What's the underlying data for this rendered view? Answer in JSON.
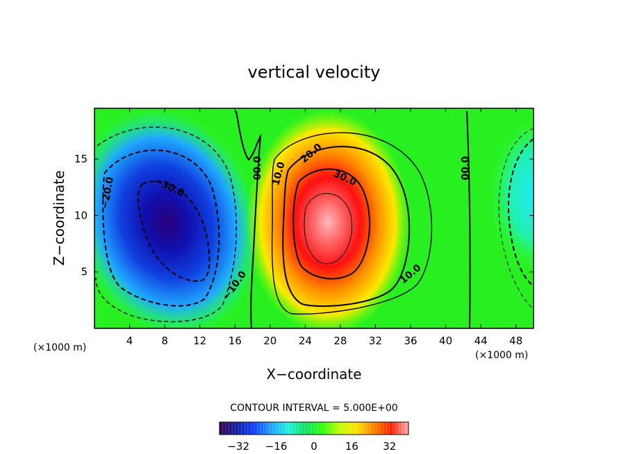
{
  "chart_data": {
    "type": "heatmap",
    "title": "vertical velocity",
    "xlabel": "X−coordinate",
    "ylabel": "Z−coordinate",
    "x_unit_left": "(×1000 m)",
    "x_unit_right": "(×1000 m)",
    "xlim": [
      0,
      50
    ],
    "ylim": [
      0,
      19.5
    ],
    "x_ticks": [
      4,
      8,
      12,
      16,
      20,
      24,
      28,
      32,
      36,
      40,
      44,
      48
    ],
    "y_ticks": [
      5,
      10,
      15
    ],
    "contour_interval_text": "CONTOUR INTERVAL = 5.000E+00",
    "colorbar": {
      "range": [
        -40,
        40
      ],
      "ticks": [
        -32,
        -16,
        0,
        16,
        32
      ],
      "tick_labels": [
        "−32",
        "−16",
        "0",
        "16",
        "32"
      ],
      "colors": [
        "#3a0050",
        "#1020a0",
        "#1040ff",
        "#20a0ff",
        "#20f0e0",
        "#10e060",
        "#30ff10",
        "#c0ff00",
        "#ffe000",
        "#ff8000",
        "#ff2000",
        "#ffb0b0"
      ]
    },
    "features": [
      {
        "kind": "min",
        "x": 9.5,
        "z": 9.8,
        "value": -38
      },
      {
        "kind": "max",
        "x": 26.5,
        "z": 8.5,
        "value": 38
      },
      {
        "kind": "min",
        "x": 50,
        "z": 11.5,
        "value": -12
      }
    ],
    "contour_labels": [
      {
        "text": "−20.0",
        "x": 1.5,
        "z": 12
      },
      {
        "text": "−30.0",
        "x": 8.5,
        "z": 12.5
      },
      {
        "text": "−10.0",
        "x": 16,
        "z": 3.8
      },
      {
        "text": "00.0",
        "x": 18.6,
        "z": 14.2
      },
      {
        "text": "10.0",
        "x": 21,
        "z": 13.7
      },
      {
        "text": "20.0",
        "x": 24.7,
        "z": 15.5
      },
      {
        "text": "30.0",
        "x": 28.5,
        "z": 13.3
      },
      {
        "text": "10.0",
        "x": 36,
        "z": 4.8
      },
      {
        "text": "00.0",
        "x": 42.3,
        "z": 14.2
      }
    ]
  }
}
